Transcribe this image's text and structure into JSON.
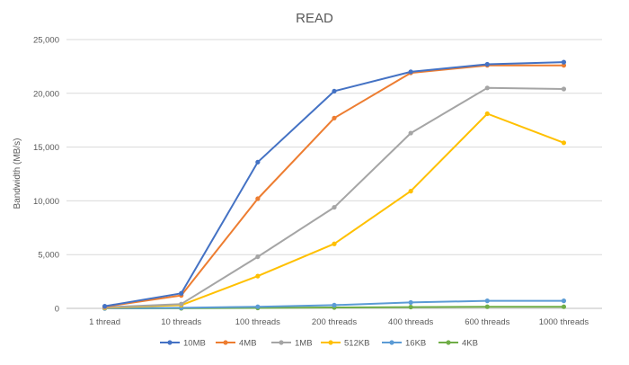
{
  "chart_data": {
    "type": "line",
    "title": "READ",
    "xlabel": "",
    "ylabel": "Bandwidth (MB/s)",
    "ylim": [
      0,
      25000
    ],
    "yticks": [
      0,
      5000,
      10000,
      15000,
      20000,
      25000
    ],
    "ytick_labels": [
      "0",
      "5,000",
      "10,000",
      "15,000",
      "20,000",
      "25,000"
    ],
    "grid": true,
    "legend_position": "bottom",
    "categories": [
      "1 thread",
      "10 threads",
      "100 threads",
      "200 threads",
      "400 threads",
      "600 threads",
      "1000 threads"
    ],
    "series": [
      {
        "name": "10MB",
        "color": "#4472C4",
        "values": [
          200,
          1400,
          13600,
          20200,
          22000,
          22700,
          22900
        ]
      },
      {
        "name": "4MB",
        "color": "#ED7D31",
        "values": [
          150,
          1200,
          10200,
          17700,
          21900,
          22600,
          22600
        ]
      },
      {
        "name": "1MB",
        "color": "#A5A5A5",
        "values": [
          100,
          400,
          4800,
          9400,
          16300,
          20500,
          20400
        ]
      },
      {
        "name": "512KB",
        "color": "#FFC000",
        "values": [
          50,
          300,
          3000,
          6000,
          10900,
          18100,
          15400
        ]
      },
      {
        "name": "16KB",
        "color": "#5B9BD5",
        "values": [
          0,
          50,
          150,
          300,
          550,
          700,
          700
        ]
      },
      {
        "name": "4KB",
        "color": "#70AD47",
        "values": [
          0,
          10,
          40,
          80,
          120,
          150,
          150
        ]
      }
    ]
  }
}
